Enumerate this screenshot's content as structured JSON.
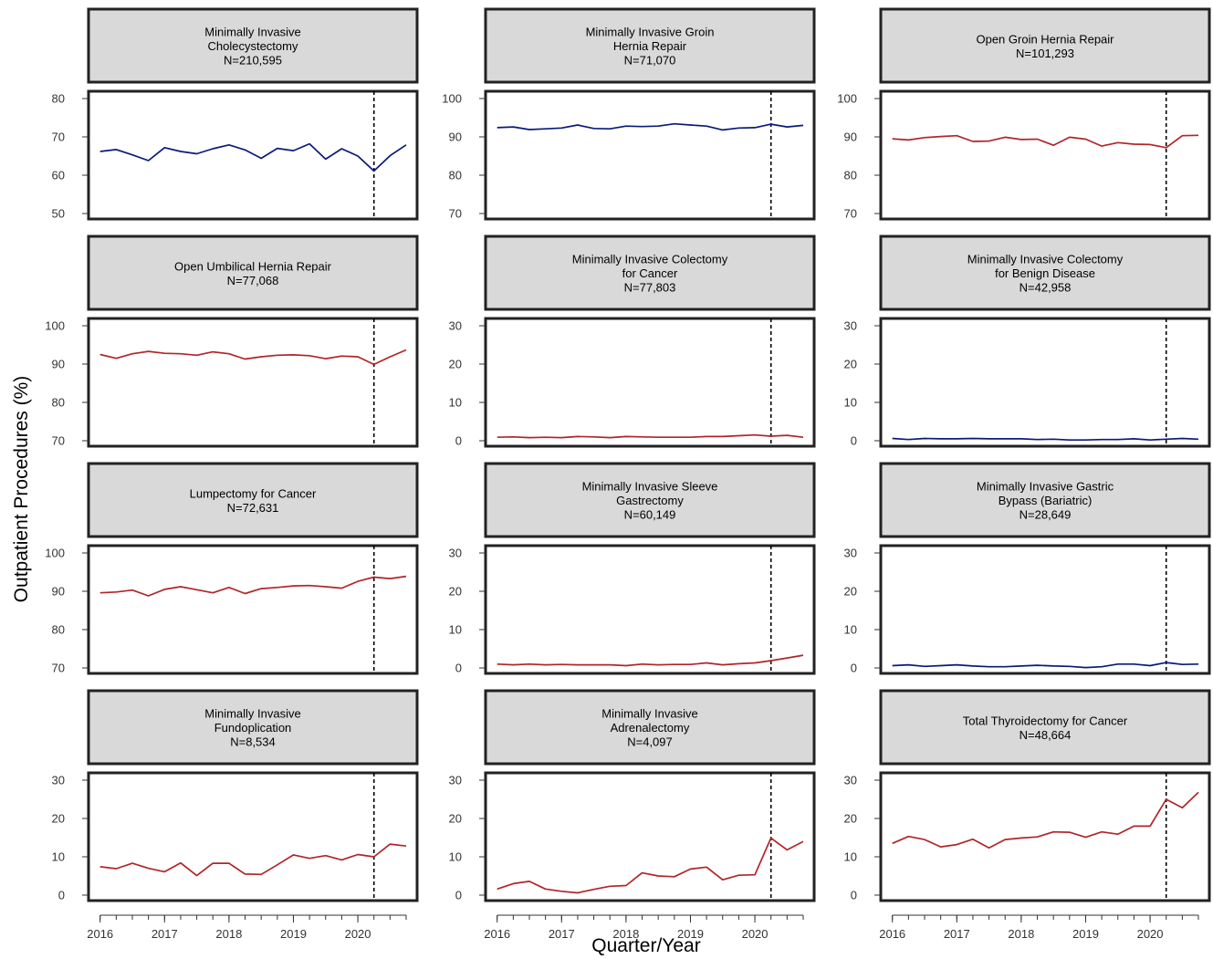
{
  "figure": {
    "ylabel": "Outpatient Procedures (%)",
    "xlabel": "Quarter/Year",
    "x_tick_labels": [
      "2016",
      "2017",
      "2018",
      "2019",
      "2020"
    ],
    "reference_line_x": 2020.25
  },
  "colors": {
    "blue": "#0b1a78",
    "red": "#b0252a",
    "strip": "#d9d9d9"
  },
  "chart_data": [
    {
      "type": "line",
      "title_lines": [
        "Minimally Invasive",
        "Cholecystectomy",
        "N=210,595"
      ],
      "color": "blue",
      "ylim": [
        48,
        80
      ],
      "yticks": [
        50,
        60,
        70,
        80
      ],
      "x": [
        2016,
        2016.25,
        2016.5,
        2016.75,
        2017,
        2017.25,
        2017.5,
        2017.75,
        2018,
        2018.25,
        2018.5,
        2018.75,
        2019,
        2019.25,
        2019.5,
        2019.75,
        2020,
        2020.25,
        2020.5,
        2020.75
      ],
      "values": [
        66.2,
        66.7,
        65.3,
        63.8,
        67.2,
        66.2,
        65.6,
        66.9,
        67.9,
        66.6,
        64.4,
        67.0,
        66.4,
        68.2,
        64.2,
        66.9,
        65.0,
        61.1,
        65.1,
        67.9
      ]
    },
    {
      "type": "line",
      "title_lines": [
        "Minimally Invasive Groin",
        "Hernia Repair",
        "N=71,070"
      ],
      "color": "blue",
      "ylim": [
        68,
        100
      ],
      "yticks": [
        70,
        80,
        90,
        100
      ],
      "x": [
        2016,
        2016.25,
        2016.5,
        2016.75,
        2017,
        2017.25,
        2017.5,
        2017.75,
        2018,
        2018.25,
        2018.5,
        2018.75,
        2019,
        2019.25,
        2019.5,
        2019.75,
        2020,
        2020.25,
        2020.5,
        2020.75
      ],
      "values": [
        92.4,
        92.6,
        91.9,
        92.1,
        92.3,
        93.1,
        92.2,
        92.1,
        92.8,
        92.7,
        92.8,
        93.4,
        93.1,
        92.8,
        91.8,
        92.3,
        92.4,
        93.3,
        92.6,
        93.0
      ]
    },
    {
      "type": "line",
      "title_lines": [
        "Open Groin Hernia Repair",
        "N=101,293"
      ],
      "color": "red",
      "ylim": [
        68,
        100
      ],
      "yticks": [
        70,
        80,
        90,
        100
      ],
      "x": [
        2016,
        2016.25,
        2016.5,
        2016.75,
        2017,
        2017.25,
        2017.5,
        2017.75,
        2018,
        2018.25,
        2018.5,
        2018.75,
        2019,
        2019.25,
        2019.5,
        2019.75,
        2020,
        2020.25,
        2020.5,
        2020.75
      ],
      "values": [
        89.5,
        89.2,
        89.8,
        90.1,
        90.3,
        88.8,
        88.9,
        89.9,
        89.3,
        89.4,
        87.8,
        89.9,
        89.4,
        87.6,
        88.5,
        88.1,
        88.0,
        87.2,
        90.3,
        90.4
      ]
    },
    {
      "type": "line",
      "title_lines": [
        "Open Umbilical Hernia Repair",
        "N=77,068"
      ],
      "color": "red",
      "ylim": [
        68,
        100
      ],
      "yticks": [
        70,
        80,
        90,
        100
      ],
      "x": [
        2016,
        2016.25,
        2016.5,
        2016.75,
        2017,
        2017.25,
        2017.5,
        2017.75,
        2018,
        2018.25,
        2018.5,
        2018.75,
        2019,
        2019.25,
        2019.5,
        2019.75,
        2020,
        2020.25,
        2020.5,
        2020.75
      ],
      "values": [
        92.5,
        91.5,
        92.7,
        93.3,
        92.8,
        92.7,
        92.3,
        93.2,
        92.7,
        91.3,
        91.9,
        92.3,
        92.4,
        92.2,
        91.4,
        92.1,
        91.9,
        89.9,
        91.9,
        93.7
      ]
    },
    {
      "type": "line",
      "title_lines": [
        "Minimally Invasive Colectomy",
        "for Cancer",
        "N=77,803"
      ],
      "color": "red",
      "ylim": [
        -2,
        30
      ],
      "yticks": [
        0,
        10,
        20,
        30
      ],
      "x": [
        2016,
        2016.25,
        2016.5,
        2016.75,
        2017,
        2017.25,
        2017.5,
        2017.75,
        2018,
        2018.25,
        2018.5,
        2018.75,
        2019,
        2019.25,
        2019.5,
        2019.75,
        2020,
        2020.25,
        2020.5,
        2020.75
      ],
      "values": [
        0.9,
        1.0,
        0.8,
        0.9,
        0.8,
        1.1,
        1.0,
        0.8,
        1.1,
        1.0,
        0.9,
        0.9,
        0.9,
        1.1,
        1.1,
        1.3,
        1.5,
        1.2,
        1.4,
        0.9
      ]
    },
    {
      "type": "line",
      "title_lines": [
        "Minimally Invasive Colectomy",
        "for Benign Disease",
        "N=42,958"
      ],
      "color": "blue",
      "ylim": [
        -2,
        30
      ],
      "yticks": [
        0,
        10,
        20,
        30
      ],
      "x": [
        2016,
        2016.25,
        2016.5,
        2016.75,
        2017,
        2017.25,
        2017.5,
        2017.75,
        2018,
        2018.25,
        2018.5,
        2018.75,
        2019,
        2019.25,
        2019.5,
        2019.75,
        2020,
        2020.25,
        2020.5,
        2020.75
      ],
      "values": [
        0.6,
        0.3,
        0.6,
        0.5,
        0.5,
        0.6,
        0.5,
        0.5,
        0.5,
        0.3,
        0.4,
        0.2,
        0.2,
        0.3,
        0.3,
        0.5,
        0.2,
        0.4,
        0.6,
        0.4
      ]
    },
    {
      "type": "line",
      "title_lines": [
        "Lumpectomy for Cancer",
        "N=72,631"
      ],
      "color": "red",
      "ylim": [
        68,
        100
      ],
      "yticks": [
        70,
        80,
        90,
        100
      ],
      "x": [
        2016,
        2016.25,
        2016.5,
        2016.75,
        2017,
        2017.25,
        2017.5,
        2017.75,
        2018,
        2018.25,
        2018.5,
        2018.75,
        2019,
        2019.25,
        2019.5,
        2019.75,
        2020,
        2020.25,
        2020.5,
        2020.75
      ],
      "values": [
        89.6,
        89.8,
        90.3,
        88.8,
        90.5,
        91.2,
        90.4,
        89.6,
        91.0,
        89.4,
        90.7,
        91.0,
        91.4,
        91.5,
        91.2,
        90.8,
        92.6,
        93.7,
        93.3,
        93.9
      ]
    },
    {
      "type": "line",
      "title_lines": [
        "Minimally Invasive Sleeve",
        "Gastrectomy",
        "N=60,149"
      ],
      "color": "red",
      "ylim": [
        -2,
        30
      ],
      "yticks": [
        0,
        10,
        20,
        30
      ],
      "x": [
        2016,
        2016.25,
        2016.5,
        2016.75,
        2017,
        2017.25,
        2017.5,
        2017.75,
        2018,
        2018.25,
        2018.5,
        2018.75,
        2019,
        2019.25,
        2019.5,
        2019.75,
        2020,
        2020.25,
        2020.5,
        2020.75
      ],
      "values": [
        1.0,
        0.8,
        1.0,
        0.8,
        0.9,
        0.8,
        0.8,
        0.8,
        0.6,
        1.0,
        0.8,
        0.9,
        0.9,
        1.3,
        0.8,
        1.1,
        1.3,
        1.9,
        2.6,
        3.3
      ]
    },
    {
      "type": "line",
      "title_lines": [
        "Minimally Invasive Gastric",
        "Bypass (Bariatric)",
        "N=28,649"
      ],
      "color": "blue",
      "ylim": [
        -2,
        30
      ],
      "yticks": [
        0,
        10,
        20,
        30
      ],
      "x": [
        2016,
        2016.25,
        2016.5,
        2016.75,
        2017,
        2017.25,
        2017.5,
        2017.75,
        2018,
        2018.25,
        2018.5,
        2018.75,
        2019,
        2019.25,
        2019.5,
        2019.75,
        2020,
        2020.25,
        2020.5,
        2020.75
      ],
      "values": [
        0.6,
        0.8,
        0.4,
        0.6,
        0.8,
        0.5,
        0.3,
        0.3,
        0.5,
        0.7,
        0.5,
        0.4,
        0.1,
        0.3,
        1.0,
        1.0,
        0.6,
        1.4,
        0.9,
        1.0
      ]
    },
    {
      "type": "line",
      "title_lines": [
        "Minimally Invasive",
        "Fundoplication",
        "N=8,534"
      ],
      "color": "red",
      "ylim": [
        -2,
        30
      ],
      "yticks": [
        0,
        10,
        20,
        30
      ],
      "x": [
        2016,
        2016.25,
        2016.5,
        2016.75,
        2017,
        2017.25,
        2017.5,
        2017.75,
        2018,
        2018.25,
        2018.5,
        2018.75,
        2019,
        2019.25,
        2019.5,
        2019.75,
        2020,
        2020.25,
        2020.5,
        2020.75
      ],
      "values": [
        7.4,
        6.9,
        8.3,
        7.0,
        6.1,
        8.4,
        5.1,
        8.3,
        8.3,
        5.5,
        5.4,
        7.9,
        10.5,
        9.6,
        10.3,
        9.2,
        10.6,
        10.0,
        13.3,
        12.8
      ]
    },
    {
      "type": "line",
      "title_lines": [
        "Minimally Invasive",
        "Adrenalectomy",
        "N=4,097"
      ],
      "color": "red",
      "ylim": [
        -2,
        30
      ],
      "yticks": [
        0,
        10,
        20,
        30
      ],
      "x": [
        2016,
        2016.25,
        2016.5,
        2016.75,
        2017,
        2017.25,
        2017.5,
        2017.75,
        2018,
        2018.25,
        2018.5,
        2018.75,
        2019,
        2019.25,
        2019.5,
        2019.75,
        2020,
        2020.25,
        2020.5,
        2020.75
      ],
      "values": [
        1.6,
        3.0,
        3.6,
        1.6,
        1.0,
        0.6,
        1.5,
        2.3,
        2.5,
        5.8,
        5.0,
        4.8,
        6.8,
        7.3,
        4.0,
        5.2,
        5.3,
        14.9,
        11.8,
        14.0
      ]
    },
    {
      "type": "line",
      "title_lines": [
        "Total Thyroidectomy for Cancer",
        "N=48,664"
      ],
      "color": "red",
      "ylim": [
        -2,
        30
      ],
      "yticks": [
        0,
        10,
        20,
        30
      ],
      "x": [
        2016,
        2016.25,
        2016.5,
        2016.75,
        2017,
        2017.25,
        2017.5,
        2017.75,
        2018,
        2018.25,
        2018.5,
        2018.75,
        2019,
        2019.25,
        2019.5,
        2019.75,
        2020,
        2020.25,
        2020.5,
        2020.75
      ],
      "values": [
        13.5,
        15.3,
        14.5,
        12.6,
        13.2,
        14.6,
        12.3,
        14.5,
        14.9,
        15.2,
        16.5,
        16.4,
        15.1,
        16.5,
        15.9,
        18.0,
        18.0,
        25.0,
        22.8,
        26.8
      ]
    }
  ]
}
